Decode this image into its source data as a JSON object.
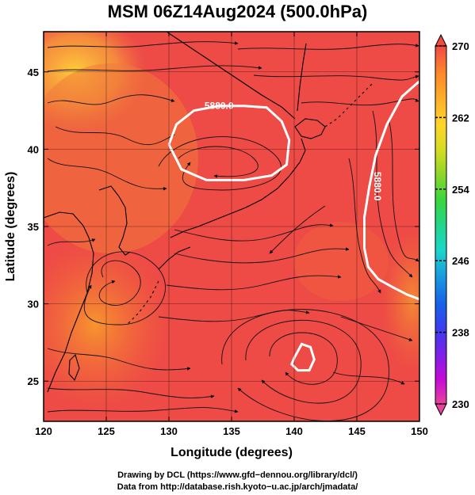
{
  "chart_data": {
    "type": "heatmap",
    "title": "MSM 06Z14Aug2024 (500.0hPa)",
    "xlabel": "Longitude (degrees)",
    "ylabel": "Latitude  (degrees)",
    "xlim": [
      120,
      150
    ],
    "ylim": [
      22.4,
      47.6
    ],
    "x_ticks": [
      "120",
      "125",
      "130",
      "135",
      "140",
      "145",
      "150"
    ],
    "y_ticks": [
      "25",
      "30",
      "35",
      "40",
      "45"
    ],
    "grid": true,
    "colorbar": {
      "range": [
        230,
        270
      ],
      "tick_labels": [
        "270",
        "262",
        "254",
        "246",
        "238",
        "230"
      ],
      "colors": [
        "#e8429c",
        "#c40ad6",
        "#7a22e8",
        "#3b3df0",
        "#1662e8",
        "#1a9de0",
        "#1cd6c8",
        "#22d68a",
        "#3ad63c",
        "#8cd62a",
        "#d6dc24",
        "#ffd52a",
        "#ffb02a",
        "#ff8a2a",
        "#f56034",
        "#f04a44"
      ]
    },
    "contours": [
      {
        "label": "5880.0",
        "lon": [
          130.0,
          130.6,
          132.0,
          134.0,
          136.0,
          137.8,
          139.0,
          139.6,
          139.4,
          138.2,
          136.0,
          133.0,
          131.0,
          130.0
        ],
        "lat": [
          40.3,
          41.6,
          42.5,
          42.8,
          42.8,
          42.7,
          41.8,
          40.6,
          39.0,
          38.3,
          38.0,
          38.0,
          38.7,
          40.3
        ]
      },
      {
        "label": "5880.0",
        "lon": [
          150.0,
          148.6,
          147.4,
          146.5,
          146.0,
          145.6,
          145.6,
          145.9,
          146.7,
          147.8,
          149.0,
          150.0
        ],
        "lat": [
          44.4,
          43.4,
          41.6,
          39.6,
          37.6,
          35.6,
          33.6,
          32.4,
          31.6,
          31.1,
          30.6,
          30.3
        ]
      },
      {
        "label": "",
        "lon": [
          140.0,
          140.6,
          141.3,
          141.6,
          141.2,
          140.3,
          139.8,
          140.0
        ],
        "lat": [
          26.5,
          27.4,
          27.2,
          26.4,
          25.7,
          25.7,
          26.1,
          26.5
        ]
      }
    ]
  },
  "credits": {
    "line1": "Drawing by DCL (https://www.gfd−dennou.org/library/dcl/)",
    "line2": "Data from http://database.rish.kyoto−u.ac.jp/arch/jmadata/"
  }
}
